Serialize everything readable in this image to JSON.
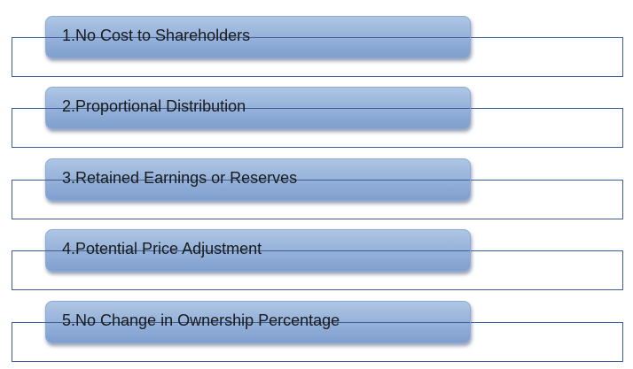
{
  "items": [
    {
      "label": "1.No Cost to Shareholders"
    },
    {
      "label": "2.Proportional Distribution"
    },
    {
      "label": "3.Retained Earnings or Reserves"
    },
    {
      "label": "4.Potential Price Adjustment"
    },
    {
      "label": "5.No Change in Ownership Percentage"
    }
  ],
  "colors": {
    "bar_fill_top": "#afc6e5",
    "bar_fill_bottom": "#7f9fcf",
    "outline": "#3b5f95",
    "text": "#1a1a1a"
  }
}
